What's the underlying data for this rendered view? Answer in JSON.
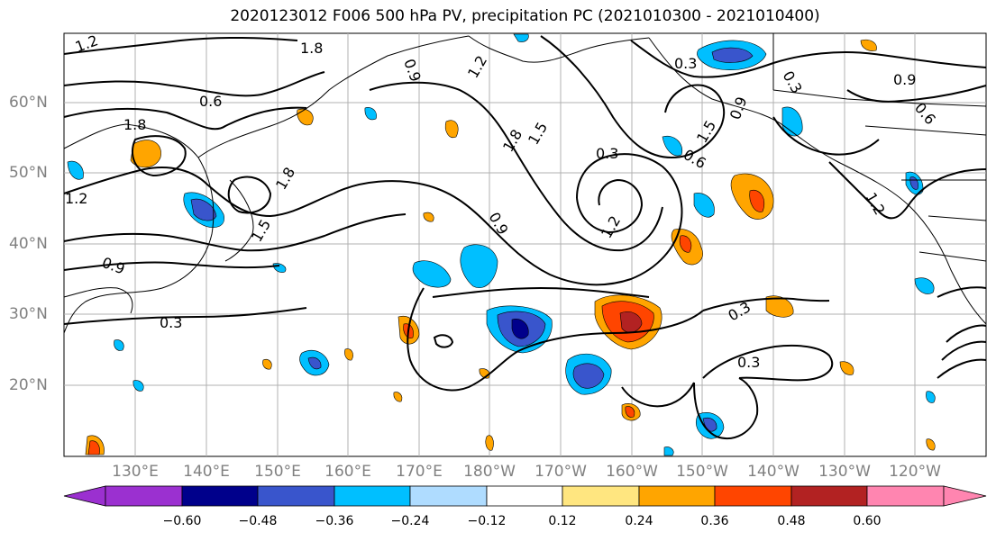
{
  "title": "2020123012 F006 500 hPa PV, precipitation PC (2021010300 - 2021010400)",
  "lat_labels": [
    "60°N",
    "50°N",
    "40°N",
    "30°N",
    "20°N"
  ],
  "lon_labels": [
    "130°E",
    "140°E",
    "150°E",
    "160°E",
    "170°E",
    "180°W",
    "170°W",
    "160°W",
    "150°W",
    "140°W",
    "130°W",
    "120°W"
  ],
  "colorbar": {
    "ticks": [
      "−0.60",
      "−0.48",
      "−0.36",
      "−0.24",
      "−0.12",
      "0.12",
      "0.24",
      "0.36",
      "0.48",
      "0.60"
    ],
    "colors": [
      "#9b30d0",
      "#00008b",
      "#3955cc",
      "#00bfff",
      "#afdcff",
      "#ffffff",
      "#ffe680",
      "#ffa500",
      "#ff4500",
      "#b22222",
      "#ff85b0"
    ]
  },
  "contour_labels": [
    "1.2",
    "1.8",
    "0.9",
    "1.2",
    "0.6",
    "1.8",
    "1.2",
    "0.9",
    "1.5",
    "1.8",
    "0.3",
    "1.5",
    "1.8",
    "0.3",
    "0.6",
    "1.5",
    "0.9",
    "0.3",
    "0.9",
    "0.6",
    "0.3",
    "1.2",
    "0.9",
    "0.3",
    "1.2",
    "0.3"
  ],
  "colors": {
    "ocean": "#ffffff",
    "contour": "#000000",
    "grid": "#b0b0b0",
    "axis_label": "#808080"
  }
}
